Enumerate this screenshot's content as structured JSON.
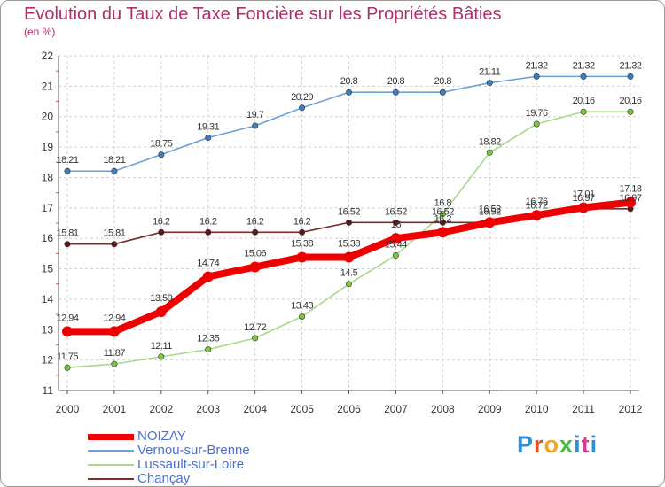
{
  "title": "Evolution du Taux de Taxe Foncière sur les Propriétés Bâties",
  "subtitle": "(en %)",
  "brand": {
    "name": "Proxiti",
    "letter_colors": [
      "#2f8fd8",
      "#e8502a",
      "#f2a51e",
      "#4db848",
      "#2f8fd8",
      "#d63f8f",
      "#2f8fd8"
    ]
  },
  "chart_data": {
    "type": "line",
    "title": "Evolution du Taux de Taxe Foncière sur les Propriétés Bâties",
    "ylabel": "(en %)",
    "xlabel": "",
    "x": [
      "2000",
      "2001",
      "2002",
      "2003",
      "2004",
      "2005",
      "2006",
      "2007",
      "2008",
      "2009",
      "2010",
      "2011",
      "2012"
    ],
    "ylim": [
      11,
      22
    ],
    "yticks": [
      "11",
      "12",
      "13",
      "14",
      "15",
      "16",
      "17",
      "18",
      "19",
      "20",
      "21",
      "22"
    ],
    "grid": true,
    "series": [
      {
        "name": "Vernou-sur-Brenne",
        "color": "#6fa0d4",
        "dot": "#3f7fc0",
        "emphasis": false,
        "values": [
          18.21,
          18.21,
          18.75,
          19.31,
          19.7,
          20.29,
          20.8,
          20.8,
          20.8,
          21.11,
          21.32,
          21.32,
          21.32
        ],
        "labels": [
          "18.21",
          "18.21",
          "18.75",
          "19.31",
          "19.7",
          "20.29",
          "20.8",
          "20.8",
          "20.8",
          "21.11",
          "21.32",
          "21.32",
          "21.32"
        ]
      },
      {
        "name": "Lussault-sur-Loire",
        "color": "#a8d88a",
        "dot": "#7ec542",
        "emphasis": false,
        "values": [
          11.75,
          11.87,
          12.11,
          12.35,
          12.72,
          13.43,
          14.5,
          15.44,
          16.8,
          18.82,
          19.76,
          20.16,
          20.16
        ],
        "labels": [
          "11.75",
          "11.87",
          "12.11",
          "12.35",
          "12.72",
          "13.43",
          "14.5",
          "15.44",
          "16.8",
          "18.82",
          "19.76",
          "20.16",
          "20.16"
        ]
      },
      {
        "name": "Chançay",
        "color": "#7a2b2b",
        "dot": "#5a1818",
        "emphasis": false,
        "values": [
          15.81,
          15.81,
          16.2,
          16.2,
          16.2,
          16.2,
          16.52,
          16.52,
          16.52,
          16.52,
          16.72,
          16.97,
          16.97
        ],
        "labels": [
          "15.81",
          "15.81",
          "16.2",
          "16.2",
          "16.2",
          "16.2",
          "16.52",
          "16.52",
          "16.52",
          "16.52",
          "16.72",
          "16.97",
          "16.97"
        ]
      },
      {
        "name": "NOIZAY",
        "color": "#ee0000",
        "dot": "#ee0000",
        "emphasis": true,
        "values": [
          12.94,
          12.94,
          13.59,
          14.74,
          15.06,
          15.38,
          15.38,
          16,
          16.2,
          16.52,
          16.76,
          17.01,
          17.18
        ],
        "labels": [
          "12.94",
          "12.94",
          "13.59",
          "14.74",
          "15.06",
          "15.38",
          "15.38",
          "16",
          "16.2",
          "16.52",
          "16.76",
          "17.01",
          "17.18"
        ]
      }
    ],
    "legend": [
      "NOIZAY",
      "Vernou-sur-Brenne",
      "Lussault-sur-Loire",
      "Chançay"
    ]
  }
}
